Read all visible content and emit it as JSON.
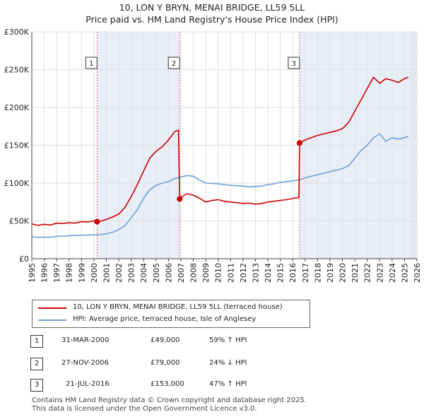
{
  "chart_data": {
    "type": "line",
    "title": "10, LON Y BRYN, MENAI BRIDGE, LL59 5LL",
    "subtitle": "Price paid vs. HM Land Registry's House Price Index (HPI)",
    "xlabel": "",
    "ylabel": "",
    "xlim": [
      1995,
      2026
    ],
    "ylim": [
      0,
      300000
    ],
    "x_ticks": [
      "1995",
      "1996",
      "1997",
      "1998",
      "1999",
      "2000",
      "2001",
      "2002",
      "2003",
      "2004",
      "2005",
      "2006",
      "2007",
      "2008",
      "2009",
      "2010",
      "2011",
      "2012",
      "2013",
      "2014",
      "2015",
      "2016",
      "2017",
      "2018",
      "2019",
      "2020",
      "2021",
      "2022",
      "2023",
      "2024",
      "2025",
      "2026"
    ],
    "y_ticks": [
      {
        "value": 0,
        "label": "£0"
      },
      {
        "value": 50000,
        "label": "£50K"
      },
      {
        "value": 100000,
        "label": "£100K"
      },
      {
        "value": 150000,
        "label": "£150K"
      },
      {
        "value": 200000,
        "label": "£200K"
      },
      {
        "value": 250000,
        "label": "£250K"
      },
      {
        "value": 300000,
        "label": "£300K"
      }
    ],
    "grid": true,
    "series": [
      {
        "name": "10, LON Y BRYN, MENAI BRIDGE, LL59 5LL (terraced house)",
        "color": "#cc0000",
        "x": [
          1995.0,
          1995.5,
          1996.0,
          1996.5,
          1997.0,
          1997.5,
          1998.0,
          1998.5,
          1999.0,
          1999.5,
          2000.0,
          2000.25,
          2000.5,
          2001.0,
          2001.5,
          2002.0,
          2002.5,
          2003.0,
          2003.5,
          2004.0,
          2004.5,
          2005.0,
          2005.5,
          2006.0,
          2006.5,
          2006.8,
          2006.9,
          2007.0,
          2007.5,
          2008.0,
          2008.5,
          2009.0,
          2009.5,
          2010.0,
          2010.5,
          2011.0,
          2011.5,
          2012.0,
          2012.5,
          2013.0,
          2013.5,
          2014.0,
          2014.5,
          2015.0,
          2015.5,
          2016.0,
          2016.5,
          2016.55,
          2017.0,
          2017.5,
          2018.0,
          2018.5,
          2019.0,
          2019.5,
          2020.0,
          2020.5,
          2021.0,
          2021.5,
          2022.0,
          2022.5,
          2023.0,
          2023.5,
          2024.0,
          2024.5,
          2025.0,
          2025.3
        ],
        "y": [
          46000,
          44000,
          45500,
          44500,
          47000,
          46500,
          47500,
          47000,
          49000,
          48500,
          50000,
          49000,
          49500,
          52000,
          55000,
          59000,
          68000,
          82000,
          98000,
          116000,
          133000,
          142000,
          148000,
          157000,
          168000,
          170000,
          79000,
          81000,
          86000,
          84000,
          80000,
          75000,
          77000,
          78000,
          76000,
          75000,
          74000,
          73000,
          73500,
          72000,
          73000,
          75000,
          76000,
          77000,
          78000,
          79500,
          81000,
          153000,
          157000,
          160000,
          163000,
          165000,
          167000,
          169000,
          172000,
          180000,
          195000,
          210000,
          225000,
          240000,
          232000,
          238000,
          236000,
          233000,
          238000,
          240000
        ]
      },
      {
        "name": "HPI: Average price, terraced house, Isle of Anglesey",
        "color": "#6f9fd8",
        "x": [
          1995.0,
          1995.5,
          1996.0,
          1996.5,
          1997.0,
          1997.5,
          1998.0,
          1998.5,
          1999.0,
          1999.5,
          2000.0,
          2000.5,
          2001.0,
          2001.5,
          2002.0,
          2002.5,
          2003.0,
          2003.5,
          2004.0,
          2004.5,
          2005.0,
          2005.5,
          2006.0,
          2006.5,
          2006.9,
          2007.0,
          2007.5,
          2008.0,
          2008.5,
          2009.0,
          2009.5,
          2010.0,
          2010.5,
          2011.0,
          2011.5,
          2012.0,
          2012.5,
          2013.0,
          2013.5,
          2014.0,
          2014.5,
          2015.0,
          2015.5,
          2016.0,
          2016.5,
          2017.0,
          2017.5,
          2018.0,
          2018.5,
          2019.0,
          2019.5,
          2020.0,
          2020.5,
          2021.0,
          2021.5,
          2022.0,
          2022.5,
          2023.0,
          2023.5,
          2024.0,
          2024.5,
          2025.0,
          2025.3
        ],
        "y": [
          29000,
          28000,
          28500,
          28300,
          29500,
          29800,
          30500,
          30800,
          31000,
          31200,
          31500,
          31800,
          33000,
          35000,
          38500,
          44000,
          54000,
          65000,
          80000,
          91000,
          97000,
          100000,
          102000,
          106000,
          107000,
          108000,
          110000,
          109000,
          104000,
          100000,
          99500,
          99000,
          98000,
          97000,
          96500,
          96000,
          95000,
          95500,
          96000,
          98000,
          99000,
          101000,
          102000,
          103000,
          104000,
          107000,
          109000,
          111000,
          113000,
          115000,
          117000,
          119000,
          123000,
          133000,
          143000,
          150000,
          160000,
          165000,
          155000,
          160000,
          158000,
          160000,
          162000
        ]
      }
    ],
    "sales": [
      {
        "marker": "1",
        "x": 2000.25,
        "y": 49000,
        "date": "31-MAR-2000",
        "price": "£49,000",
        "hpi": "59% ↑ HPI"
      },
      {
        "marker": "2",
        "x": 2006.9,
        "y": 79000,
        "date": "27-NOV-2006",
        "price": "£79,000",
        "hpi": "24% ↓ HPI"
      },
      {
        "marker": "3",
        "x": 2016.55,
        "y": 153000,
        "date": "21-JUL-2016",
        "price": "£153,000",
        "hpi": "47% ↑ HPI"
      }
    ],
    "shaded_ranges": [
      [
        2000.25,
        2006.9
      ],
      [
        2016.55,
        2026
      ]
    ],
    "hatch_from": 2025.4
  },
  "legend": {
    "property_label": "10, LON Y BRYN, MENAI BRIDGE, LL59 5LL (terraced house)",
    "hpi_label": "HPI: Average price, terraced house, Isle of Anglesey"
  },
  "footer": {
    "line1": "Contains HM Land Registry data © Crown copyright and database right 2025.",
    "line2": "This data is licensed under the Open Government Licence v3.0."
  },
  "colors": {
    "property": "#cc0000",
    "hpi": "#6f9fd8",
    "shade": "#e8eef8",
    "grid": "#e0e0e0"
  }
}
